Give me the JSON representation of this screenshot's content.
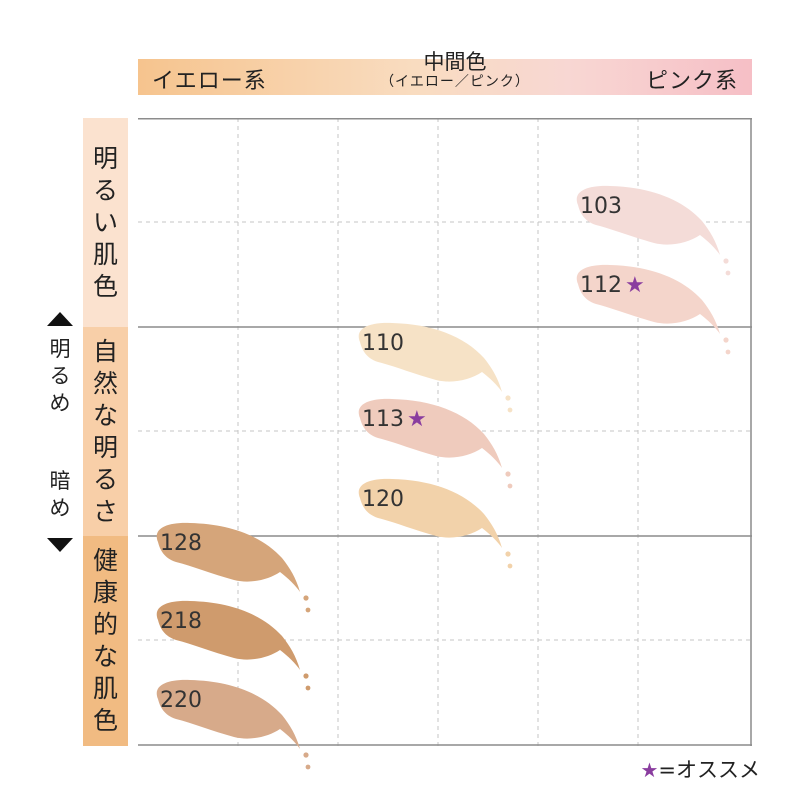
{
  "header": {
    "yellow": "イエロー系",
    "middle": "中間色",
    "middle_sub": "（イエロー／ピンク）",
    "pink": "ピンク系"
  },
  "rows": {
    "bright": [
      "明",
      "る",
      "い",
      "肌",
      "色"
    ],
    "natural": [
      "自",
      "然",
      "な",
      "明",
      "る",
      "さ"
    ],
    "healthy": [
      "健",
      "康",
      "的",
      "な",
      "肌",
      "色"
    ]
  },
  "axis": {
    "light": [
      "明",
      "る",
      "め"
    ],
    "dark": [
      "暗",
      "め"
    ]
  },
  "shades": [
    {
      "id": "103",
      "label": "103",
      "star": "",
      "color": "#f4dcd8",
      "col": "pink"
    },
    {
      "id": "112",
      "label": "112",
      "star": "★",
      "color": "#f4d5cb",
      "col": "pink"
    },
    {
      "id": "110",
      "label": "110",
      "star": "",
      "color": "#f6e2c6",
      "col": "mid"
    },
    {
      "id": "113",
      "label": "113",
      "star": "★",
      "color": "#efcbbd",
      "col": "mid"
    },
    {
      "id": "120",
      "label": "120",
      "star": "",
      "color": "#f2d2aa",
      "col": "mid"
    },
    {
      "id": "128",
      "label": "128",
      "star": "",
      "color": "#d5a57a",
      "col": "yellow"
    },
    {
      "id": "218",
      "label": "218",
      "star": "",
      "color": "#cf9b6d",
      "col": "yellow"
    },
    {
      "id": "220",
      "label": "220",
      "star": "",
      "color": "#d7aa8a",
      "col": "yellow"
    }
  ],
  "legend": {
    "star": "★",
    "text": "=オススメ"
  },
  "colors": {
    "star": "#8a3d9f",
    "grid": "#bbbbbb",
    "major": "#888888"
  }
}
